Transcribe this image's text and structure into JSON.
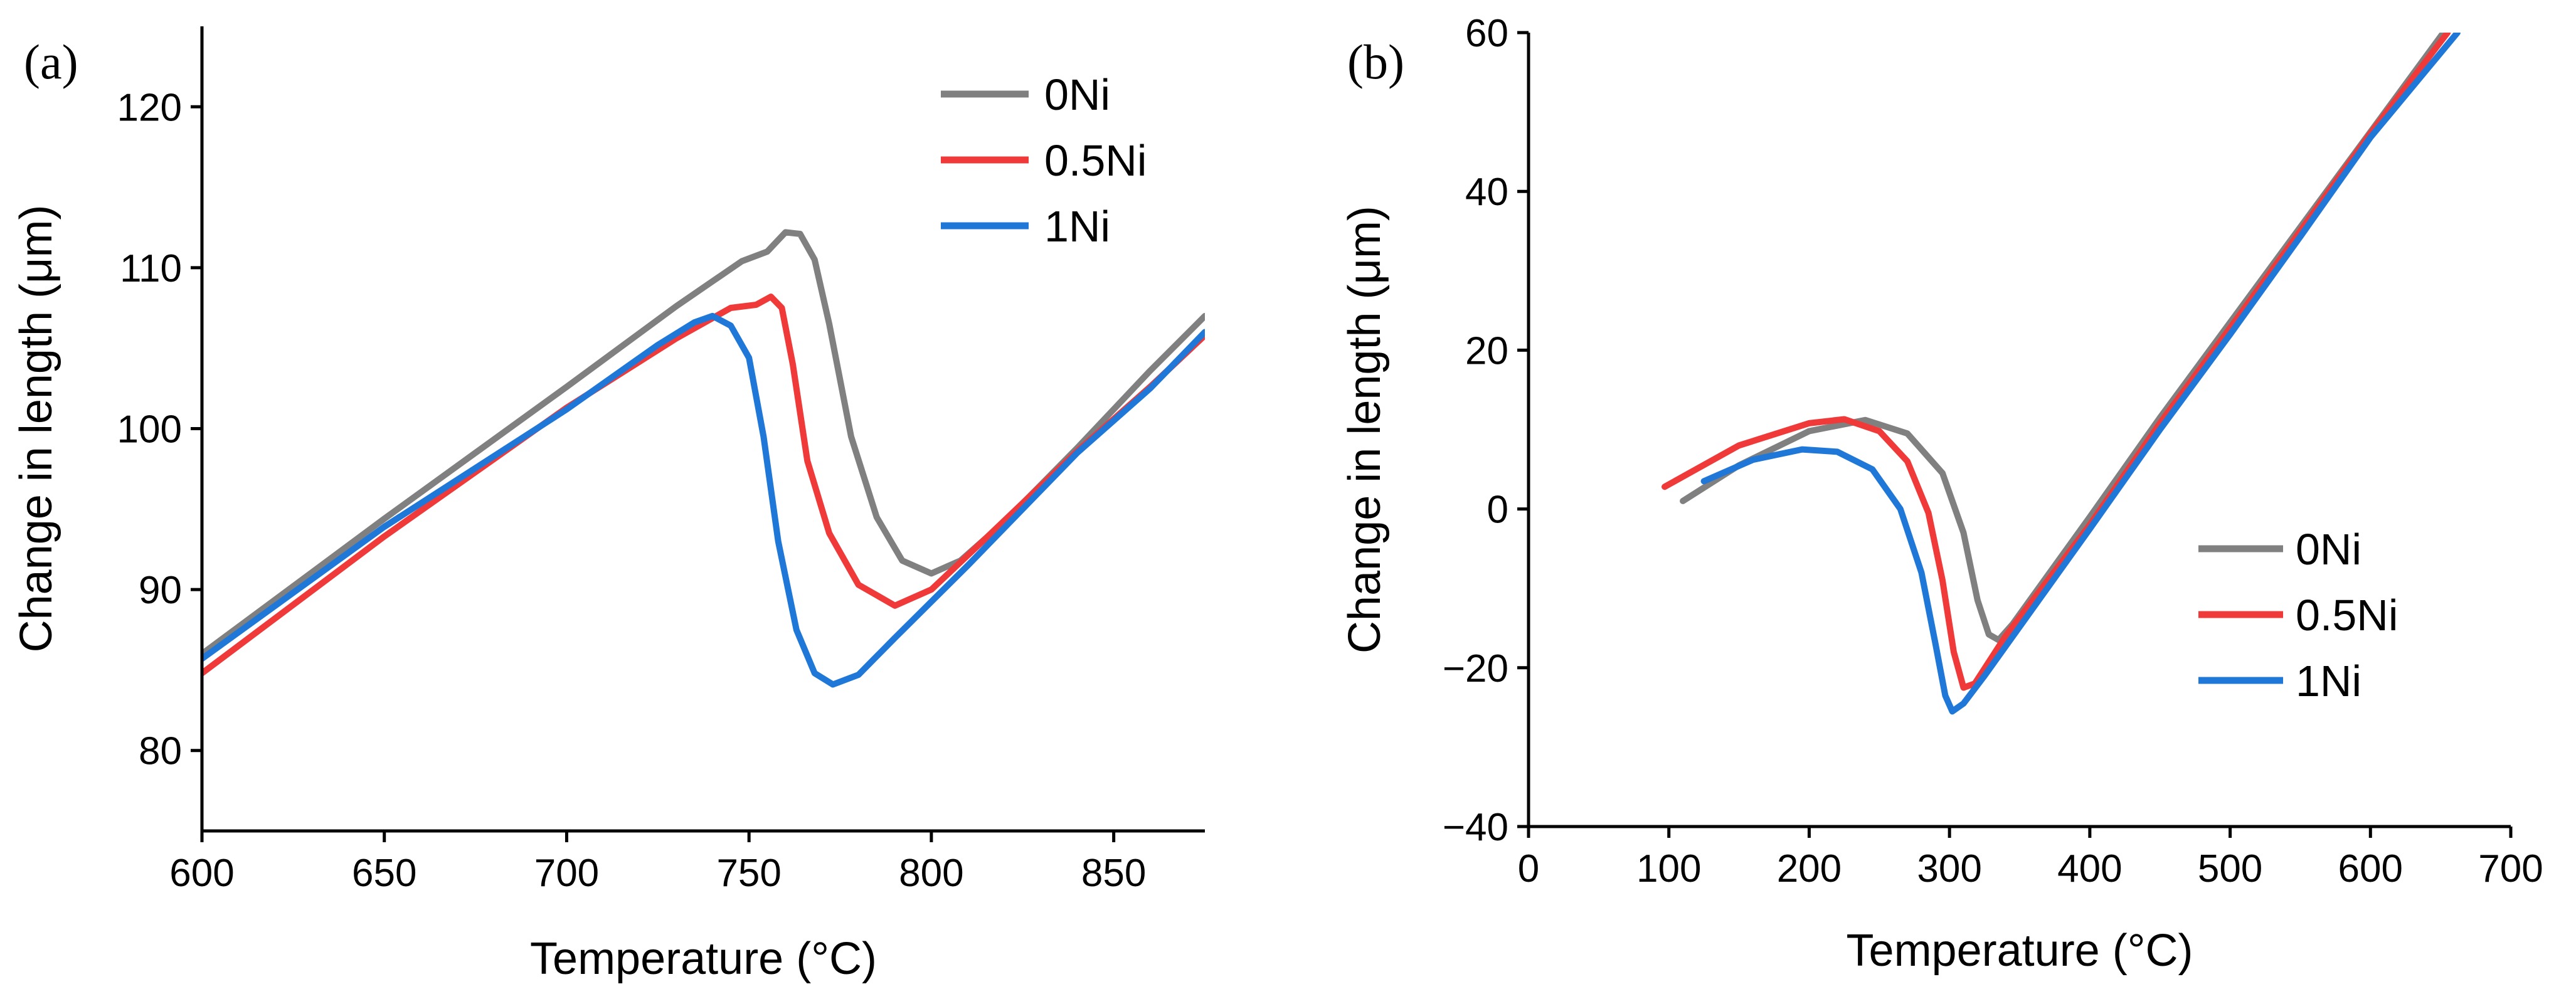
{
  "chart_data": [
    {
      "type": "line",
      "panel_label": "(a)",
      "xlabel": "Temperature (°C)",
      "ylabel": "Change in length (μm)",
      "xlim": [
        600,
        875
      ],
      "ylim": [
        75,
        125
      ],
      "xticks": [
        600,
        650,
        700,
        750,
        800,
        850
      ],
      "yticks": [
        80,
        90,
        100,
        110,
        120
      ],
      "legend_position": "top-right",
      "series": [
        {
          "name": "0Ni",
          "color": "#808080",
          "points": [
            [
              600,
              86.0
            ],
            [
              650,
              94.4
            ],
            [
              700,
              102.6
            ],
            [
              730,
              107.6
            ],
            [
              748,
              110.4
            ],
            [
              755,
              111.0
            ],
            [
              760,
              112.2
            ],
            [
              764,
              112.1
            ],
            [
              768,
              110.5
            ],
            [
              772,
              106.5
            ],
            [
              778,
              99.5
            ],
            [
              785,
              94.5
            ],
            [
              792,
              91.8
            ],
            [
              800,
              91.0
            ],
            [
              808,
              91.8
            ],
            [
              820,
              94.2
            ],
            [
              840,
              98.8
            ],
            [
              860,
              103.6
            ],
            [
              875,
              107.0
            ]
          ]
        },
        {
          "name": "0.5Ni",
          "color": "#f03a3a",
          "points": [
            [
              600,
              84.8
            ],
            [
              650,
              93.3
            ],
            [
              700,
              101.3
            ],
            [
              730,
              105.6
            ],
            [
              745,
              107.5
            ],
            [
              752,
              107.7
            ],
            [
              756,
              108.2
            ],
            [
              759,
              107.5
            ],
            [
              762,
              104.0
            ],
            [
              766,
              98.0
            ],
            [
              772,
              93.5
            ],
            [
              780,
              90.3
            ],
            [
              790,
              89.0
            ],
            [
              800,
              90.0
            ],
            [
              815,
              93.2
            ],
            [
              840,
              98.6
            ],
            [
              860,
              102.6
            ],
            [
              875,
              105.8
            ]
          ]
        },
        {
          "name": "1Ni",
          "color": "#1f78d8",
          "points": [
            [
              600,
              85.7
            ],
            [
              650,
              93.9
            ],
            [
              700,
              101.2
            ],
            [
              725,
              105.2
            ],
            [
              735,
              106.6
            ],
            [
              740,
              107.0
            ],
            [
              745,
              106.4
            ],
            [
              750,
              104.4
            ],
            [
              754,
              99.5
            ],
            [
              758,
              93.0
            ],
            [
              763,
              87.5
            ],
            [
              768,
              84.8
            ],
            [
              773,
              84.1
            ],
            [
              780,
              84.7
            ],
            [
              790,
              87.0
            ],
            [
              810,
              91.5
            ],
            [
              840,
              98.5
            ],
            [
              860,
              102.5
            ],
            [
              875,
              106.0
            ]
          ]
        }
      ]
    },
    {
      "type": "line",
      "panel_label": "(b)",
      "xlabel": "Temperature (°C)",
      "ylabel": "Change in length (μm)",
      "xlim": [
        0,
        700
      ],
      "ylim": [
        -40,
        60
      ],
      "xticks": [
        0,
        100,
        200,
        300,
        400,
        500,
        600,
        700
      ],
      "yticks": [
        -40,
        -20,
        0,
        20,
        40,
        60
      ],
      "legend_position": "bottom-right",
      "series": [
        {
          "name": "0Ni",
          "color": "#808080",
          "points": [
            [
              110,
              1.0
            ],
            [
              150,
              5.5
            ],
            [
              200,
              9.8
            ],
            [
              240,
              11.2
            ],
            [
              270,
              9.5
            ],
            [
              295,
              4.5
            ],
            [
              310,
              -3.0
            ],
            [
              320,
              -11.5
            ],
            [
              328,
              -15.8
            ],
            [
              335,
              -16.5
            ],
            [
              345,
              -14.5
            ],
            [
              400,
              -1.0
            ],
            [
              450,
              11.5
            ],
            [
              500,
              23.5
            ],
            [
              550,
              35.5
            ],
            [
              600,
              47.5
            ],
            [
              652,
              60
            ]
          ]
        },
        {
          "name": "0.5Ni",
          "color": "#f03a3a",
          "points": [
            [
              97,
              2.8
            ],
            [
              150,
              8.0
            ],
            [
              200,
              10.8
            ],
            [
              225,
              11.3
            ],
            [
              250,
              9.8
            ],
            [
              270,
              6.0
            ],
            [
              285,
              -0.5
            ],
            [
              295,
              -9.0
            ],
            [
              303,
              -18.0
            ],
            [
              310,
              -22.5
            ],
            [
              318,
              -22.0
            ],
            [
              340,
              -16.0
            ],
            [
              400,
              -2.0
            ],
            [
              450,
              10.8
            ],
            [
              500,
              22.8
            ],
            [
              550,
              35.0
            ],
            [
              600,
              47.3
            ],
            [
              655,
              60
            ]
          ]
        },
        {
          "name": "1Ni",
          "color": "#1f78d8",
          "points": [
            [
              125,
              3.5
            ],
            [
              160,
              6.2
            ],
            [
              195,
              7.5
            ],
            [
              220,
              7.2
            ],
            [
              245,
              5.0
            ],
            [
              265,
              0.0
            ],
            [
              280,
              -8.0
            ],
            [
              290,
              -17.0
            ],
            [
              297,
              -23.5
            ],
            [
              302,
              -25.5
            ],
            [
              310,
              -24.5
            ],
            [
              325,
              -21.0
            ],
            [
              400,
              -2.5
            ],
            [
              450,
              10.0
            ],
            [
              500,
              22.0
            ],
            [
              550,
              34.3
            ],
            [
              600,
              46.8
            ],
            [
              662,
              60
            ]
          ]
        }
      ]
    }
  ]
}
